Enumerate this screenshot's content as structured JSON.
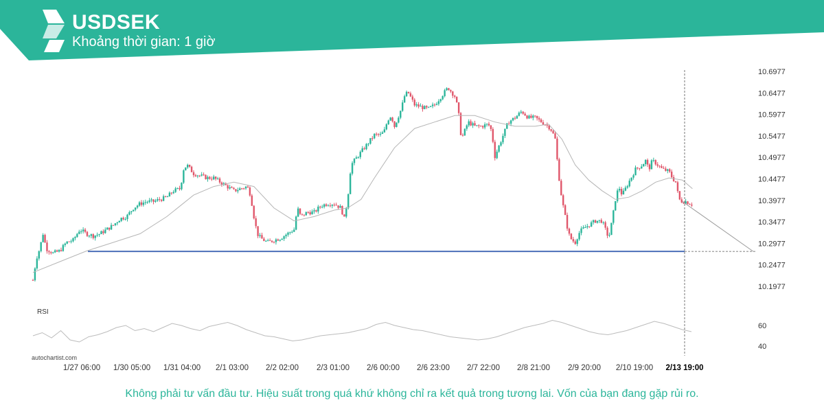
{
  "header": {
    "symbol": "USDSEK",
    "timeframe": "Khoảng thời gian: 1 giờ",
    "brand_color": "#2bb59a",
    "logo_icon": "autochartist-logo-icon"
  },
  "chart_data": {
    "type": "candlestick",
    "title": "USDSEK",
    "ylim": [
      10.18,
      10.71
    ],
    "y_ticks": [
      "10.6977",
      "10.6477",
      "10.5977",
      "10.5477",
      "10.4977",
      "10.4477",
      "10.3977",
      "10.3477",
      "10.2977",
      "10.2477",
      "10.1977"
    ],
    "x_ticks": [
      "1/27 06:00",
      "1/30 05:00",
      "1/31 04:00",
      "2/1 03:00",
      "2/2 02:00",
      "2/3 01:00",
      "2/6 00:00",
      "2/6 23:00",
      "2/7 22:00",
      "2/8 21:00",
      "2/9 20:00",
      "2/10 19:00",
      "2/13 19:00"
    ],
    "highlighted_x_tick": "2/13 19:00",
    "price_path": [
      [
        0,
        10.212
      ],
      [
        5,
        10.262
      ],
      [
        10,
        10.285
      ],
      [
        15,
        10.32
      ],
      [
        20,
        10.285
      ],
      [
        30,
        10.275
      ],
      [
        40,
        10.28
      ],
      [
        50,
        10.3
      ],
      [
        60,
        10.305
      ],
      [
        70,
        10.33
      ],
      [
        80,
        10.32
      ],
      [
        90,
        10.315
      ],
      [
        100,
        10.32
      ],
      [
        110,
        10.33
      ],
      [
        120,
        10.34
      ],
      [
        130,
        10.355
      ],
      [
        140,
        10.36
      ],
      [
        150,
        10.38
      ],
      [
        160,
        10.39
      ],
      [
        170,
        10.395
      ],
      [
        180,
        10.395
      ],
      [
        190,
        10.4
      ],
      [
        200,
        10.405
      ],
      [
        210,
        10.42
      ],
      [
        220,
        10.425
      ],
      [
        225,
        10.47
      ],
      [
        230,
        10.48
      ],
      [
        240,
        10.46
      ],
      [
        250,
        10.455
      ],
      [
        260,
        10.45
      ],
      [
        270,
        10.45
      ],
      [
        280,
        10.44
      ],
      [
        290,
        10.43
      ],
      [
        300,
        10.42
      ],
      [
        310,
        10.425
      ],
      [
        320,
        10.43
      ],
      [
        325,
        10.41
      ],
      [
        330,
        10.36
      ],
      [
        335,
        10.32
      ],
      [
        340,
        10.31
      ],
      [
        350,
        10.3
      ],
      [
        360,
        10.305
      ],
      [
        370,
        10.31
      ],
      [
        380,
        10.32
      ],
      [
        390,
        10.33
      ],
      [
        395,
        10.38
      ],
      [
        400,
        10.36
      ],
      [
        410,
        10.37
      ],
      [
        420,
        10.37
      ],
      [
        430,
        10.385
      ],
      [
        440,
        10.39
      ],
      [
        450,
        10.39
      ],
      [
        460,
        10.38
      ],
      [
        465,
        10.355
      ],
      [
        470,
        10.4
      ],
      [
        475,
        10.48
      ],
      [
        480,
        10.49
      ],
      [
        490,
        10.51
      ],
      [
        500,
        10.53
      ],
      [
        505,
        10.54
      ],
      [
        510,
        10.55
      ],
      [
        520,
        10.55
      ],
      [
        525,
        10.56
      ],
      [
        530,
        10.585
      ],
      [
        535,
        10.595
      ],
      [
        540,
        10.57
      ],
      [
        545,
        10.59
      ],
      [
        550,
        10.61
      ],
      [
        555,
        10.64
      ],
      [
        560,
        10.65
      ],
      [
        570,
        10.62
      ],
      [
        580,
        10.615
      ],
      [
        590,
        10.61
      ],
      [
        600,
        10.62
      ],
      [
        610,
        10.64
      ],
      [
        620,
        10.66
      ],
      [
        630,
        10.64
      ],
      [
        635,
        10.61
      ],
      [
        640,
        10.54
      ],
      [
        645,
        10.56
      ],
      [
        650,
        10.58
      ],
      [
        660,
        10.57
      ],
      [
        670,
        10.57
      ],
      [
        680,
        10.575
      ],
      [
        685,
        10.56
      ],
      [
        690,
        10.5
      ],
      [
        700,
        10.54
      ],
      [
        710,
        10.58
      ],
      [
        720,
        10.59
      ],
      [
        730,
        10.605
      ],
      [
        740,
        10.59
      ],
      [
        750,
        10.59
      ],
      [
        760,
        10.58
      ],
      [
        770,
        10.57
      ],
      [
        775,
        10.56
      ],
      [
        780,
        10.54
      ],
      [
        785,
        10.46
      ],
      [
        790,
        10.4
      ],
      [
        795,
        10.36
      ],
      [
        800,
        10.32
      ],
      [
        805,
        10.305
      ],
      [
        810,
        10.3
      ],
      [
        815,
        10.32
      ],
      [
        820,
        10.33
      ],
      [
        830,
        10.34
      ],
      [
        840,
        10.35
      ],
      [
        850,
        10.35
      ],
      [
        855,
        10.33
      ],
      [
        860,
        10.31
      ],
      [
        865,
        10.35
      ],
      [
        870,
        10.4
      ],
      [
        875,
        10.43
      ],
      [
        880,
        10.41
      ],
      [
        890,
        10.44
      ],
      [
        900,
        10.47
      ],
      [
        910,
        10.48
      ],
      [
        915,
        10.49
      ],
      [
        920,
        10.47
      ],
      [
        925,
        10.49
      ],
      [
        930,
        10.485
      ],
      [
        940,
        10.47
      ],
      [
        950,
        10.465
      ],
      [
        955,
        10.45
      ],
      [
        960,
        10.44
      ],
      [
        965,
        10.4
      ],
      [
        970,
        10.395
      ],
      [
        975,
        10.395
      ],
      [
        985,
        10.388
      ]
    ],
    "moving_average_path": [
      [
        0,
        10.23
      ],
      [
        40,
        10.255
      ],
      [
        80,
        10.28
      ],
      [
        120,
        10.3
      ],
      [
        160,
        10.32
      ],
      [
        200,
        10.36
      ],
      [
        240,
        10.41
      ],
      [
        270,
        10.43
      ],
      [
        300,
        10.44
      ],
      [
        330,
        10.43
      ],
      [
        360,
        10.38
      ],
      [
        390,
        10.35
      ],
      [
        420,
        10.36
      ],
      [
        450,
        10.375
      ],
      [
        470,
        10.38
      ],
      [
        490,
        10.4
      ],
      [
        510,
        10.45
      ],
      [
        540,
        10.52
      ],
      [
        570,
        10.565
      ],
      [
        600,
        10.58
      ],
      [
        630,
        10.595
      ],
      [
        660,
        10.595
      ],
      [
        690,
        10.58
      ],
      [
        720,
        10.57
      ],
      [
        750,
        10.57
      ],
      [
        770,
        10.575
      ],
      [
        790,
        10.54
      ],
      [
        810,
        10.48
      ],
      [
        830,
        10.445
      ],
      [
        850,
        10.42
      ],
      [
        870,
        10.4
      ],
      [
        890,
        10.405
      ],
      [
        910,
        10.42
      ],
      [
        930,
        10.44
      ],
      [
        950,
        10.45
      ],
      [
        970,
        10.445
      ],
      [
        985,
        10.425
      ]
    ],
    "support_level": 10.279,
    "projection": {
      "from": [
        970,
        10.395
      ],
      "to": [
        1045,
        10.279
      ]
    },
    "rsi": {
      "label": "RSI",
      "ticks": [
        "60",
        "40"
      ],
      "values": [
        50,
        53,
        48,
        55,
        46,
        44,
        49,
        51,
        54,
        58,
        60,
        55,
        57,
        54,
        58,
        62,
        60,
        57,
        55,
        59,
        61,
        63,
        60,
        56,
        53,
        50,
        49,
        47,
        45,
        46,
        48,
        50,
        51,
        52,
        53,
        55,
        57,
        61,
        63,
        60,
        58,
        56,
        55,
        53,
        51,
        49,
        48,
        47,
        46,
        47,
        49,
        52,
        55,
        58,
        60,
        62,
        65,
        63,
        60,
        57,
        54,
        52,
        51,
        53,
        55,
        58,
        61,
        64,
        62,
        59,
        56,
        54
      ]
    }
  },
  "watermark": "autochartist.com",
  "footer": {
    "disclaimer": "Không phải tư vấn đầu tư. Hiệu suất trong quá khứ không chỉ ra kết quả trong tương lai. Vốn của bạn đang gặp rủi ro."
  },
  "colors": {
    "bull": "#2bb59a",
    "bear": "#e0566a",
    "support": "#4a6eb8",
    "ma": "#b5b5b5",
    "grid_text": "#333333"
  }
}
